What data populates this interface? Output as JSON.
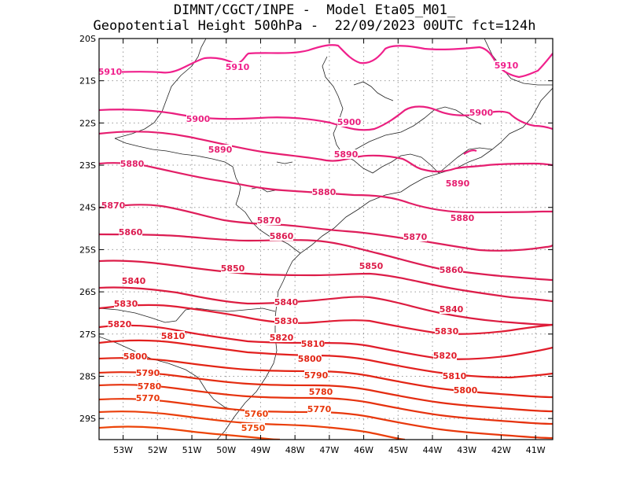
{
  "header": {
    "line1": "DIMNT/CGCT/INPE -  Model Eta05_M01_",
    "line2": "Geopotential Height 500hPa -  22/09/2023 00UTC fct=124h"
  },
  "map": {
    "lon_range": [
      -53.7,
      -40.5
    ],
    "lat_range": [
      -29.5,
      -20.0
    ],
    "x_ticks": [
      "53W",
      "52W",
      "51W",
      "50W",
      "49W",
      "48W",
      "47W",
      "46W",
      "45W",
      "44W",
      "43W",
      "42W",
      "41W"
    ],
    "x_tick_values": [
      -53,
      -52,
      -51,
      -50,
      -49,
      -48,
      -47,
      -46,
      -45,
      -44,
      -43,
      -42,
      -41
    ],
    "y_ticks": [
      "20S",
      "21S",
      "22S",
      "23S",
      "24S",
      "25S",
      "26S",
      "27S",
      "28S",
      "29S"
    ],
    "y_tick_values": [
      -20,
      -21,
      -22,
      -23,
      -24,
      -25,
      -26,
      -27,
      -28,
      -29
    ],
    "grid": "dotted",
    "contour_interval": 10,
    "contours": [
      {
        "value": 5910,
        "color": "#f0208c",
        "labels": [
          "5910",
          "5910",
          "5910"
        ]
      },
      {
        "value": 5900,
        "color": "#ea1f7f",
        "labels": [
          "5900",
          "5900",
          "5900"
        ]
      },
      {
        "value": 5890,
        "color": "#e61e70",
        "labels": [
          "5890",
          "5890",
          "5890"
        ]
      },
      {
        "value": 5880,
        "color": "#e21e66",
        "labels": [
          "5880",
          "5880",
          "5880"
        ]
      },
      {
        "value": 5870,
        "color": "#de1e5a",
        "labels": [
          "5870",
          "5870",
          "5870"
        ]
      },
      {
        "value": 5860,
        "color": "#dc1c52",
        "labels": [
          "5860",
          "5860",
          "5860"
        ]
      },
      {
        "value": 5850,
        "color": "#dc1c48",
        "labels": [
          "5850",
          "5850"
        ]
      },
      {
        "value": 5840,
        "color": "#dc1c40",
        "labels": [
          "5840",
          "5840",
          "5840"
        ]
      },
      {
        "value": 5830,
        "color": "#e01c34",
        "labels": [
          "5830",
          "5830",
          "5830"
        ]
      },
      {
        "value": 5820,
        "color": "#e01c2a",
        "labels": [
          "5820",
          "5820",
          "5820"
        ]
      },
      {
        "value": 5810,
        "color": "#e2201e",
        "labels": [
          "5810",
          "5810",
          "5810"
        ]
      },
      {
        "value": 5800,
        "color": "#e22414",
        "labels": [
          "5800",
          "5800",
          "5800"
        ]
      },
      {
        "value": 5790,
        "color": "#e42c10",
        "labels": [
          "5790",
          "5790"
        ]
      },
      {
        "value": 5780,
        "color": "#e6320e",
        "labels": [
          "5780",
          "5780"
        ]
      },
      {
        "value": 5770,
        "color": "#e8380c",
        "labels": [
          "5770",
          "5770"
        ]
      },
      {
        "value": 5760,
        "color": "#ea3e0a",
        "labels": [
          "5760"
        ]
      },
      {
        "value": 5750,
        "color": "#ec4408",
        "labels": [
          "5750"
        ]
      }
    ]
  }
}
